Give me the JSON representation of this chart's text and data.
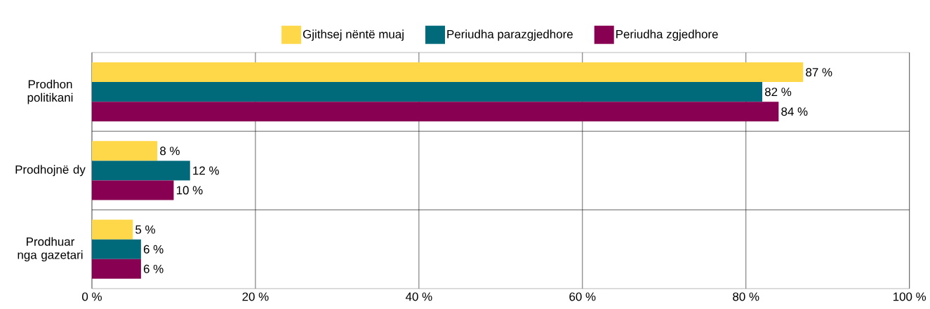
{
  "chart_data": {
    "type": "bar",
    "orientation": "horizontal",
    "categories": [
      "Prodhon politikani",
      "Prodhojnë dy",
      "Prodhuar nga gazetari"
    ],
    "series": [
      {
        "name": "Gjithsej nëntë muaj",
        "color": "#ffd84a",
        "values": [
          87,
          8,
          5
        ],
        "value_labels": [
          "87 %",
          "8 %",
          "5 %"
        ]
      },
      {
        "name": "Periudha parazgjedhore",
        "color": "#006a7a",
        "values": [
          82,
          12,
          6
        ],
        "value_labels": [
          "82 %",
          "12 %",
          "6 %"
        ]
      },
      {
        "name": "Periudha zgjedhore",
        "color": "#870051",
        "values": [
          84,
          10,
          6
        ],
        "value_labels": [
          "84 %",
          "10 %",
          "6 %"
        ]
      }
    ],
    "xlim": [
      0,
      100
    ],
    "xticks": [
      {
        "value": 0,
        "label": "0 %"
      },
      {
        "value": 20,
        "label": "20 %"
      },
      {
        "value": 40,
        "label": "40 %"
      },
      {
        "value": 60,
        "label": "60 %"
      },
      {
        "value": 80,
        "label": "80 %"
      },
      {
        "value": 100,
        "label": "100 %"
      }
    ],
    "grid": true,
    "legend": "top"
  }
}
